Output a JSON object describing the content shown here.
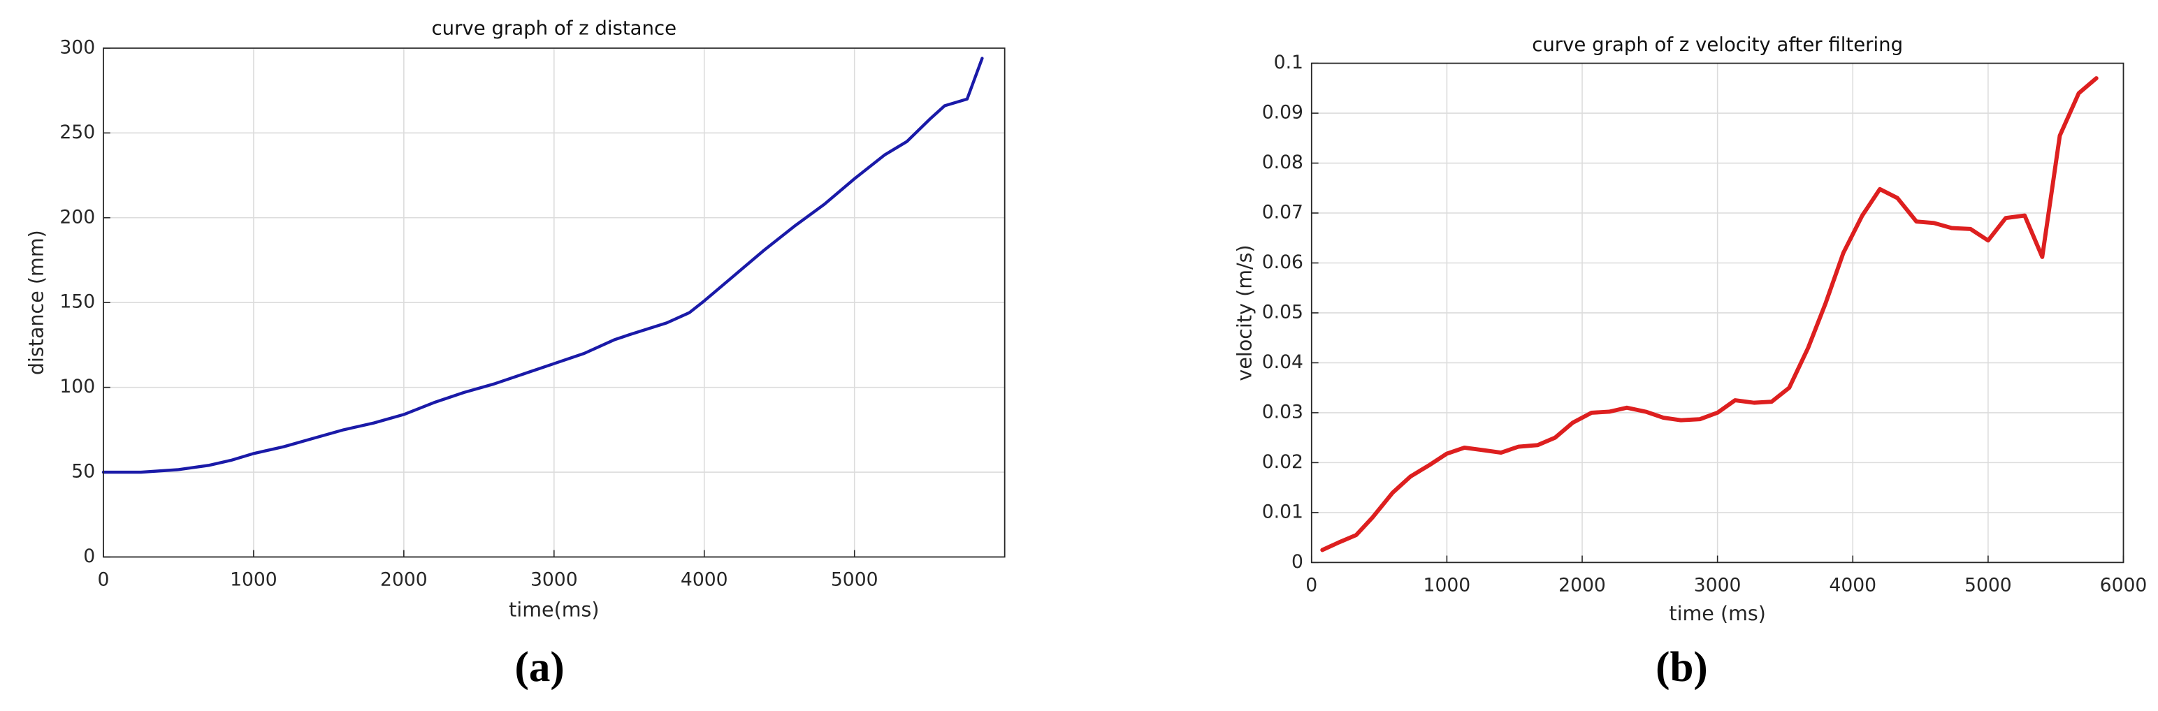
{
  "chart_data": [
    {
      "type": "line",
      "title": "curve graph of z distance",
      "x_label": "time(ms)",
      "y_label": "distance (mm)",
      "caption": "(a)",
      "color": "#1a1aa8",
      "grid": true,
      "x": [
        0,
        250,
        500,
        700,
        850,
        1000,
        1200,
        1400,
        1600,
        1800,
        2000,
        2200,
        2400,
        2600,
        2800,
        3000,
        3200,
        3400,
        3500,
        3750,
        3900,
        4000,
        4200,
        4400,
        4600,
        4800,
        5000,
        5200,
        5350,
        5500,
        5600,
        5750,
        5850
      ],
      "values": [
        50,
        50,
        51.5,
        54,
        57,
        61,
        65,
        70,
        75,
        79,
        84,
        91,
        97,
        102,
        108,
        114,
        120,
        128,
        131,
        138,
        144,
        151,
        166,
        181,
        195,
        208,
        223,
        237,
        245,
        258,
        266,
        270,
        294
      ],
      "xlim": [
        0,
        6000
      ],
      "xticks": [
        0,
        1000,
        2000,
        3000,
        4000,
        5000
      ],
      "ylim": [
        0,
        300
      ],
      "yticks": [
        0,
        50,
        100,
        150,
        200,
        250,
        300
      ]
    },
    {
      "type": "line",
      "title": "curve graph of z velocity after filtering",
      "x_label": "time (ms)",
      "y_label": "velocity (m/s)",
      "caption": "(b)",
      "color": "#dd1f1f",
      "grid": true,
      "x": [
        80,
        200,
        330,
        450,
        600,
        730,
        870,
        1000,
        1130,
        1270,
        1400,
        1530,
        1670,
        1800,
        1930,
        2070,
        2200,
        2330,
        2470,
        2600,
        2730,
        2870,
        3000,
        3130,
        3270,
        3400,
        3530,
        3670,
        3800,
        3930,
        4070,
        4200,
        4330,
        4470,
        4600,
        4730,
        4870,
        5000,
        5130,
        5270,
        5400,
        5530,
        5670,
        5800
      ],
      "values": [
        0.0025,
        0.004,
        0.0055,
        0.009,
        0.014,
        0.0172,
        0.0195,
        0.0218,
        0.023,
        0.0225,
        0.022,
        0.0232,
        0.0235,
        0.025,
        0.028,
        0.03,
        0.0302,
        0.031,
        0.0302,
        0.029,
        0.0285,
        0.0287,
        0.03,
        0.0325,
        0.032,
        0.0322,
        0.035,
        0.043,
        0.052,
        0.062,
        0.0695,
        0.0748,
        0.073,
        0.0683,
        0.068,
        0.067,
        0.0668,
        0.0645,
        0.069,
        0.0695,
        0.0612,
        0.0855,
        0.094,
        0.097
      ],
      "xlim": [
        0,
        6000
      ],
      "xticks": [
        0,
        1000,
        2000,
        3000,
        4000,
        5000,
        6000
      ],
      "ylim": [
        0,
        0.1
      ],
      "yticks": [
        0,
        0.01,
        0.02,
        0.03,
        0.04,
        0.05,
        0.06,
        0.07,
        0.08,
        0.09,
        0.1
      ]
    }
  ]
}
